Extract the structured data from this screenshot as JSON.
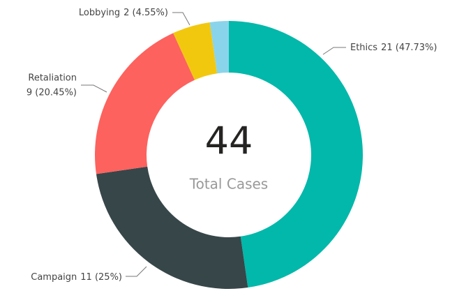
{
  "chart_data": {
    "type": "donut",
    "categories": [
      "Ethics",
      "Campaign",
      "Retaliation",
      "Lobbying",
      null
    ],
    "values": [
      21,
      11,
      9,
      2,
      1
    ],
    "value_labels": [
      "21 (47.73%)",
      "11 (25%)",
      "9 (20.45%)",
      "2 (4.55%)",
      null
    ],
    "colors": [
      "#01B8AA",
      "#374649",
      "#FD625E",
      "#F2C80F",
      "#8AD4EB"
    ],
    "center_value": 44,
    "center_label": "Total Cases"
  }
}
